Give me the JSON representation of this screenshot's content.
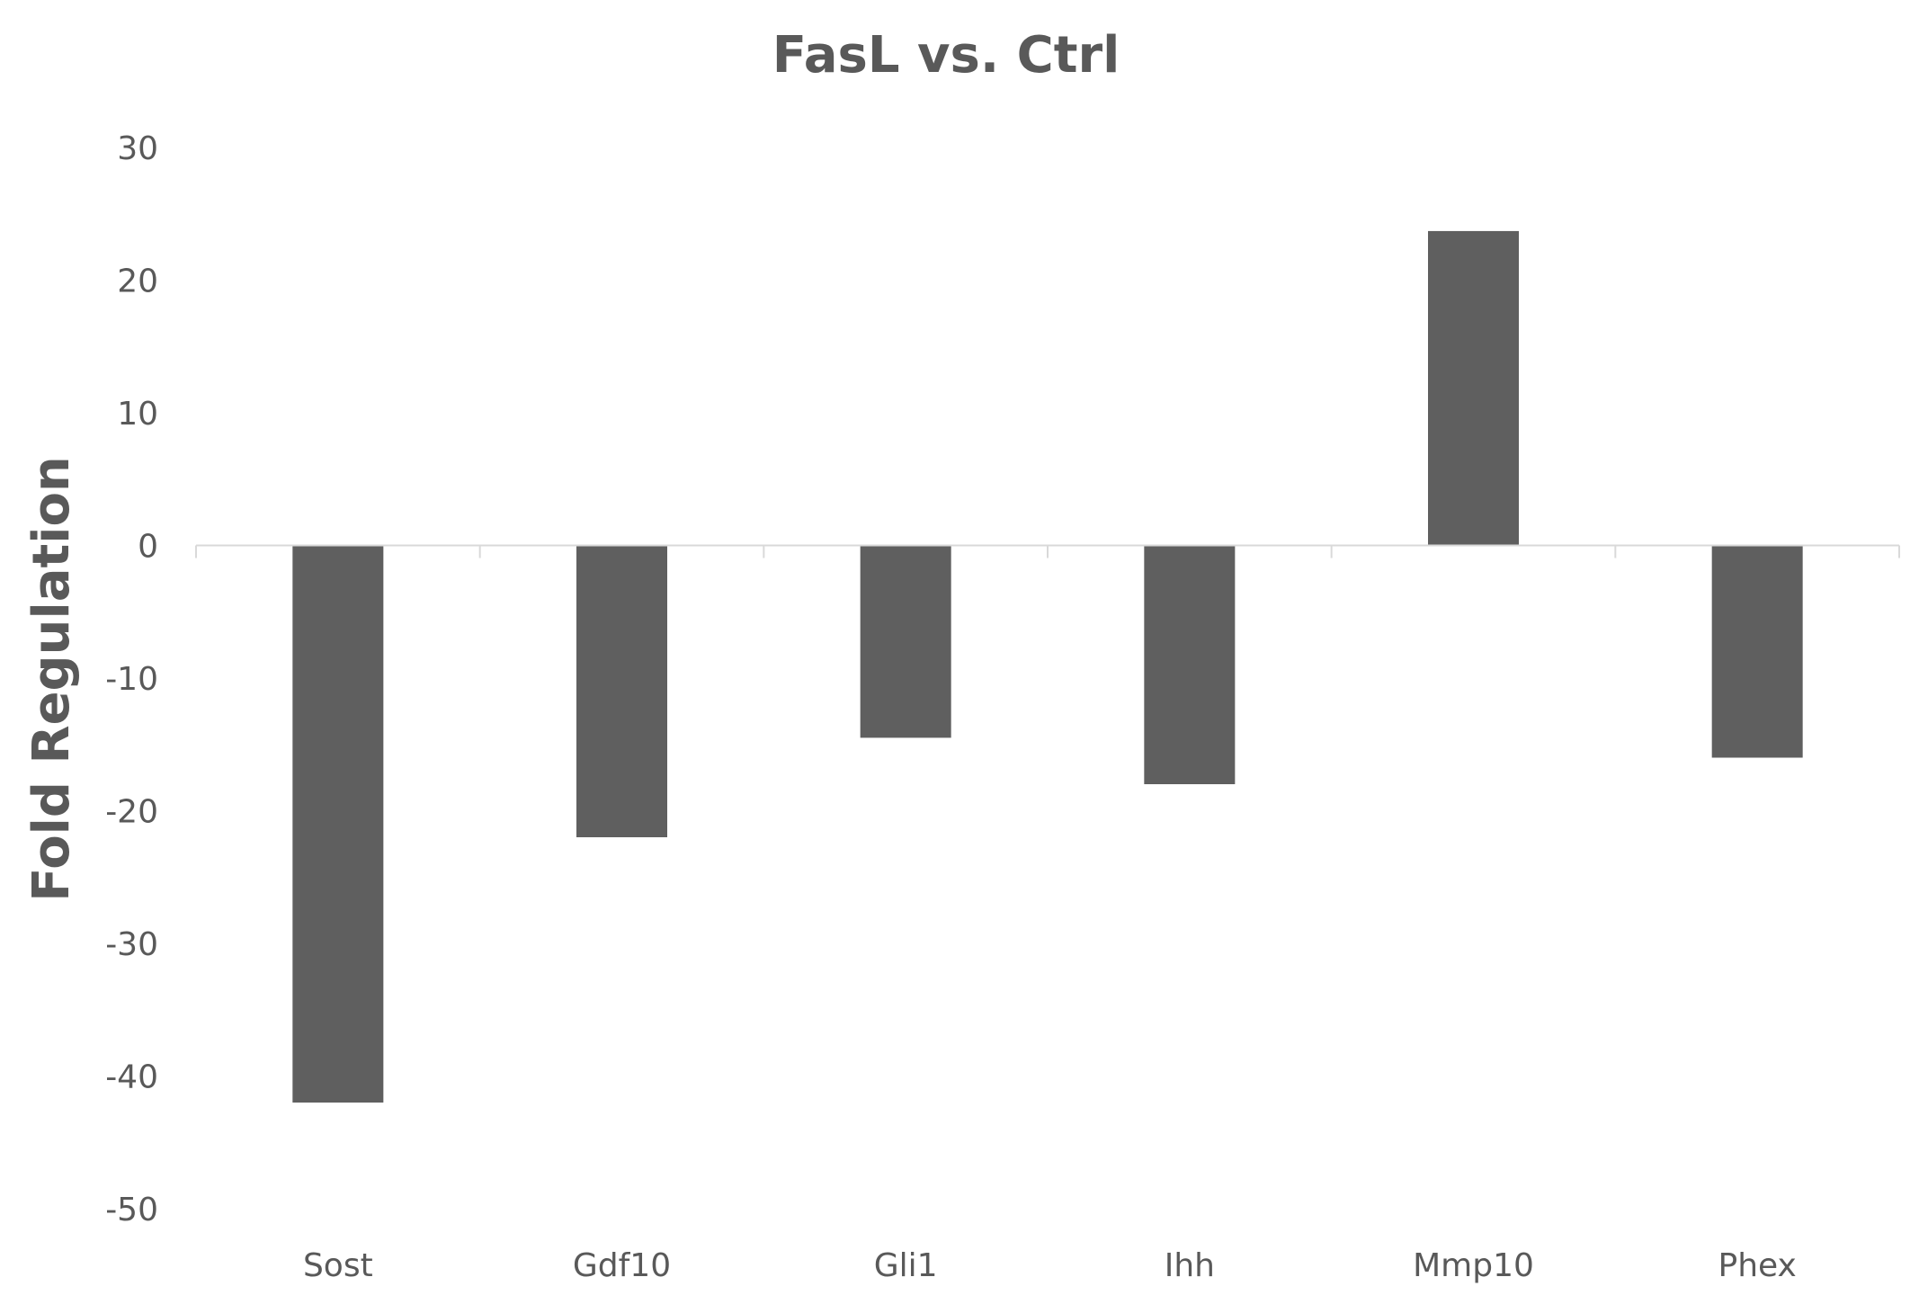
{
  "chart_data": {
    "type": "bar",
    "title": "FasL vs. Ctrl",
    "xlabel": "",
    "ylabel": "Fold Regulation",
    "categories": [
      "Sost",
      "Gdf10",
      "Gli1",
      "Ihh",
      "Mmp10",
      "Phex"
    ],
    "values": [
      -42,
      -22,
      -14.5,
      -18,
      23.7,
      -16
    ],
    "ylim": [
      -50,
      30
    ],
    "yticks": [
      30,
      20,
      10,
      0,
      -10,
      -20,
      -30,
      -40,
      -50
    ],
    "ytick_labels": [
      "30",
      "20",
      "10",
      "0",
      "-10",
      "-20",
      "-30",
      "-40",
      "-50"
    ],
    "grid": false,
    "legend": "none",
    "colors": {
      "bar": "#5f5f5f",
      "axis": "#d9d9d9",
      "text": "#595959"
    }
  }
}
